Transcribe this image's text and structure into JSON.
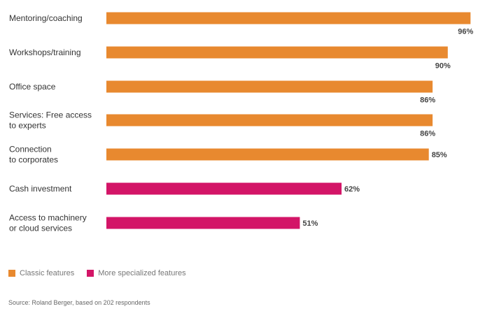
{
  "chart_data": {
    "type": "bar",
    "orientation": "horizontal",
    "unit": "%",
    "xlim": [
      0,
      100
    ],
    "grid": false,
    "legend_position": "bottom-left",
    "categories": [
      [
        "Mentoring/coaching"
      ],
      [
        "Workshops/training"
      ],
      [
        "Office space"
      ],
      [
        "Services: Free access",
        "to experts"
      ],
      [
        "Connection",
        "to corporates"
      ],
      [
        "Cash investment"
      ],
      [
        "Access to machinery",
        "or cloud services"
      ]
    ],
    "values": [
      96,
      90,
      86,
      86,
      85,
      62,
      51
    ],
    "value_labels": [
      "96%",
      "90%",
      "86%",
      "86%",
      "85%",
      "62%",
      "51%"
    ],
    "groups": [
      "classic",
      "classic",
      "classic",
      "classic",
      "classic",
      "specialized",
      "specialized"
    ],
    "series": [
      {
        "name": "Classic features",
        "key": "classic",
        "color": "#E8892F"
      },
      {
        "name": "More specialized features",
        "key": "specialized",
        "color": "#D31567"
      }
    ]
  },
  "legend": {
    "classic": "Classic features",
    "specialized": "More specialized features"
  },
  "source": "Source: Roland Berger, based on 202 respondents"
}
